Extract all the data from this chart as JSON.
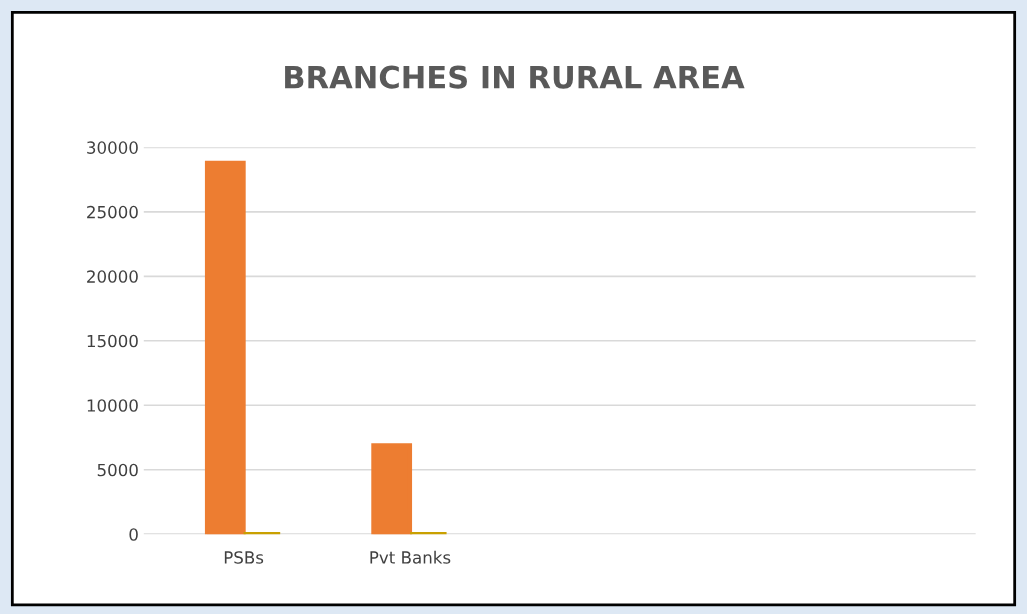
{
  "chart_data": {
    "type": "bar",
    "title": "BRANCHES IN RURAL AREA",
    "categories": [
      "PSBs",
      "Pvt Banks"
    ],
    "series": [
      {
        "color": "#ed7d31",
        "values": [
          28800,
          6900
        ]
      },
      {
        "color": "#c9a000",
        "values": [
          0,
          0
        ]
      }
    ],
    "ylim": [
      0,
      30000
    ],
    "yticks": [
      0,
      5000,
      10000,
      15000,
      20000,
      25000,
      30000
    ],
    "grid": "y",
    "legend": false
  }
}
